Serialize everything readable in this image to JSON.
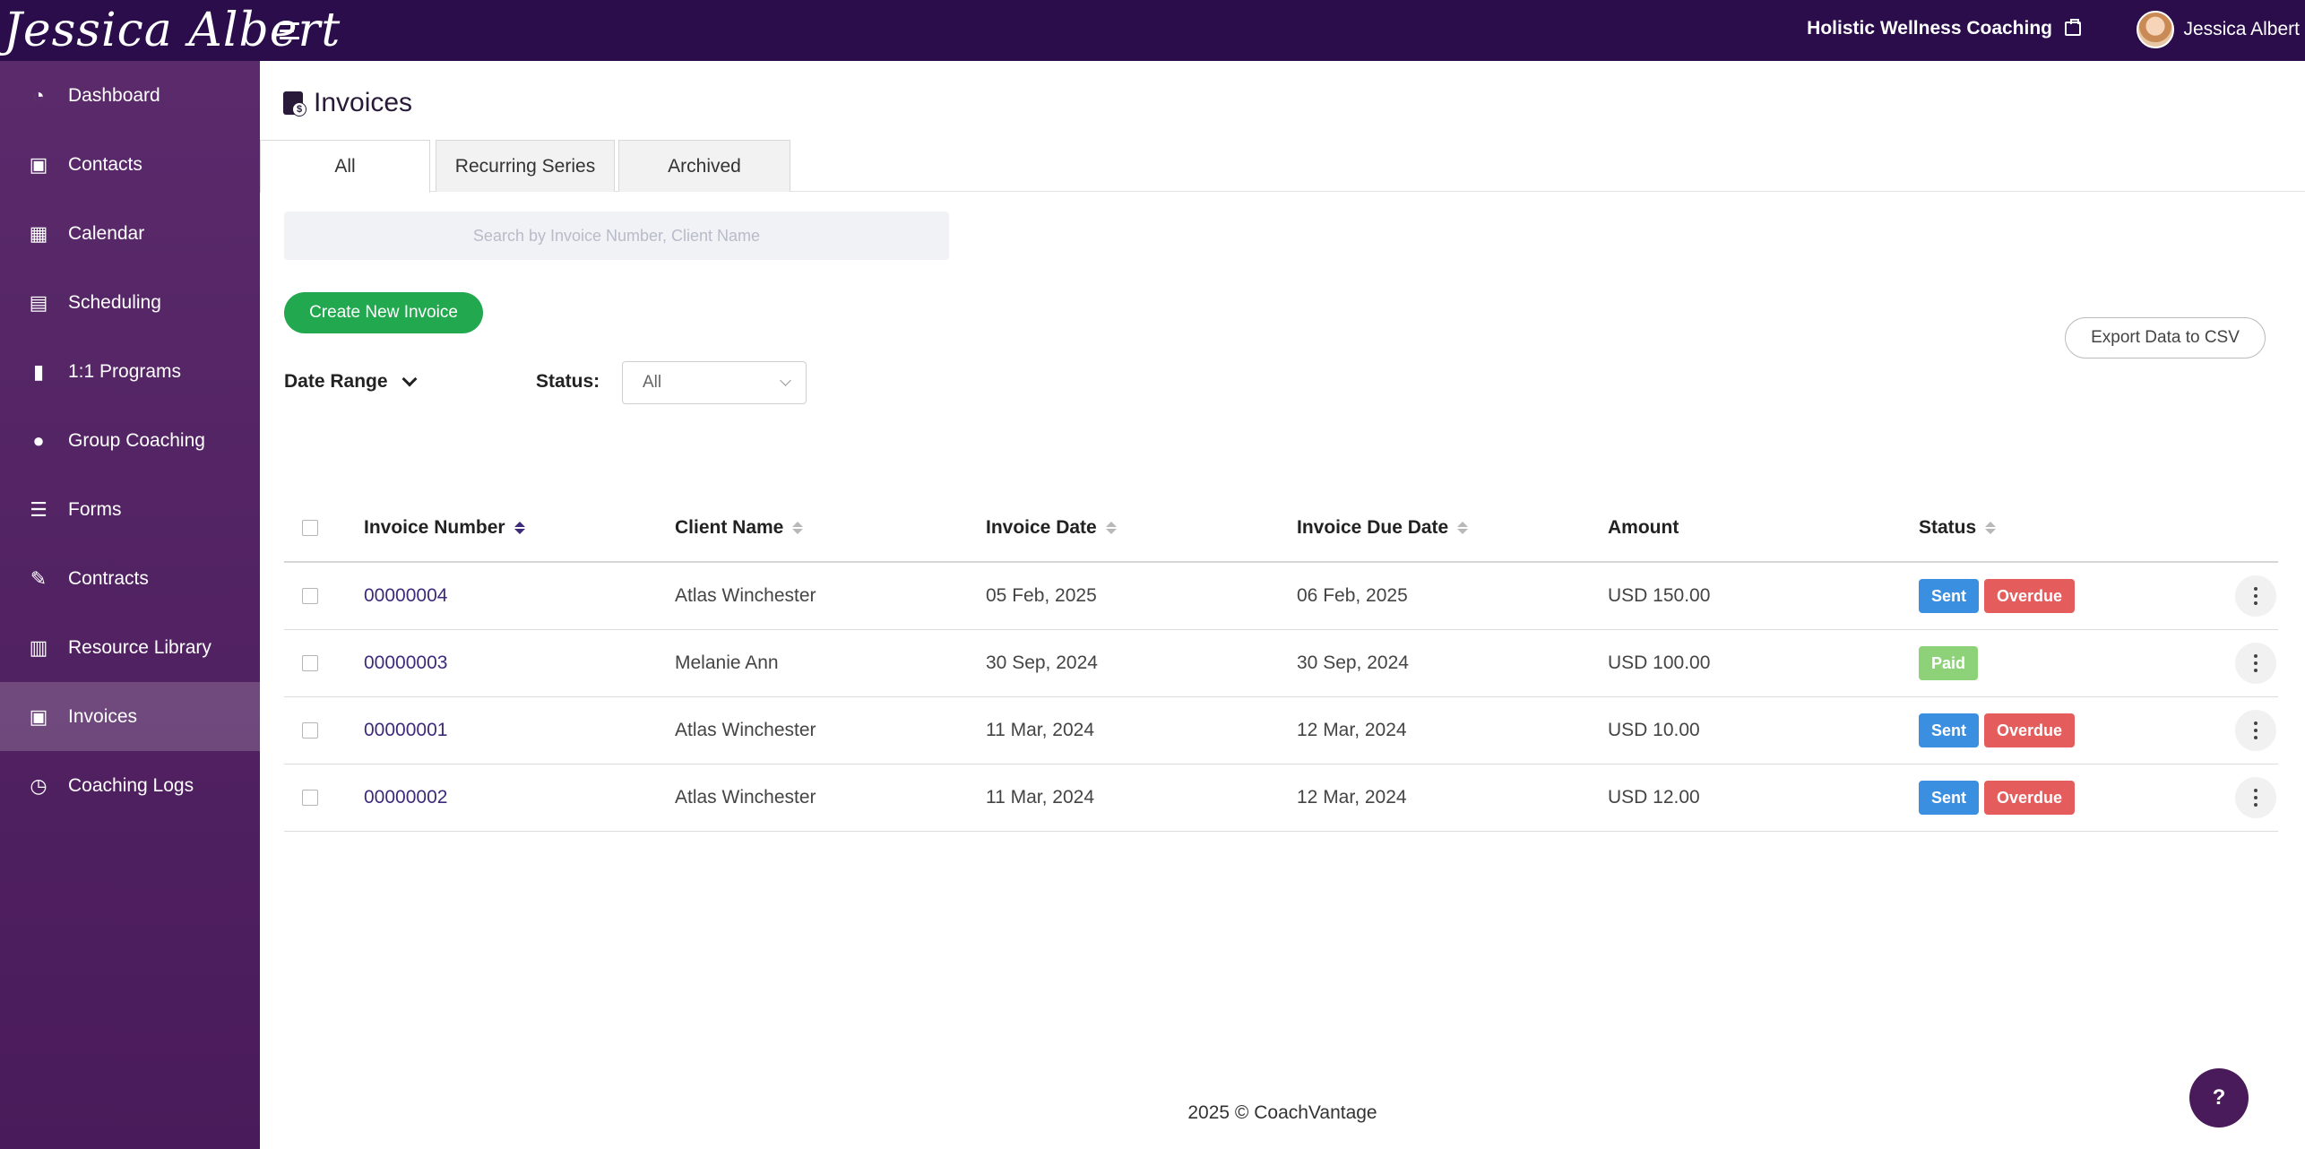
{
  "brand": {
    "name": "Jessica Albert"
  },
  "header": {
    "business_name": "Holistic Wellness Coaching",
    "user_name": "Jessica Albert"
  },
  "sidebar": {
    "items": [
      {
        "label": "Dashboard",
        "icon": "dashboard-icon"
      },
      {
        "label": "Contacts",
        "icon": "contacts-icon"
      },
      {
        "label": "Calendar",
        "icon": "calendar-icon"
      },
      {
        "label": "Scheduling",
        "icon": "scheduling-icon"
      },
      {
        "label": "1:1 Programs",
        "icon": "book-icon"
      },
      {
        "label": "Group Coaching",
        "icon": "group-icon"
      },
      {
        "label": "Forms",
        "icon": "forms-icon"
      },
      {
        "label": "Contracts",
        "icon": "contract-icon"
      },
      {
        "label": "Resource Library",
        "icon": "library-icon"
      },
      {
        "label": "Invoices",
        "icon": "invoice-icon",
        "active": true
      },
      {
        "label": "Coaching Logs",
        "icon": "clock-icon"
      }
    ]
  },
  "page": {
    "title": "Invoices"
  },
  "tabs": [
    {
      "label": "All",
      "active": true
    },
    {
      "label": "Recurring Series"
    },
    {
      "label": "Archived"
    }
  ],
  "search": {
    "placeholder": "Search by Invoice Number, Client Name"
  },
  "actions": {
    "create_label": "Create New Invoice",
    "export_label": "Export Data to CSV"
  },
  "filters": {
    "date_range_label": "Date Range",
    "status_label": "Status:",
    "status_value": "All"
  },
  "table": {
    "columns": [
      "Invoice Number",
      "Client Name",
      "Invoice Date",
      "Invoice Due Date",
      "Amount",
      "Status"
    ],
    "rows": [
      {
        "number": "00000004",
        "client": "Atlas Winchester",
        "date": "05 Feb, 2025",
        "due": "06 Feb, 2025",
        "amount": "USD 150.00",
        "badges": [
          "Sent",
          "Overdue"
        ]
      },
      {
        "number": "00000003",
        "client": "Melanie Ann",
        "date": "30 Sep, 2024",
        "due": "30 Sep, 2024",
        "amount": "USD 100.00",
        "badges": [
          "Paid"
        ]
      },
      {
        "number": "00000001",
        "client": "Atlas Winchester",
        "date": "11 Mar, 2024",
        "due": "12 Mar, 2024",
        "amount": "USD 10.00",
        "badges": [
          "Sent",
          "Overdue"
        ]
      },
      {
        "number": "00000002",
        "client": "Atlas Winchester",
        "date": "11 Mar, 2024",
        "due": "12 Mar, 2024",
        "amount": "USD 12.00",
        "badges": [
          "Sent",
          "Overdue"
        ]
      }
    ]
  },
  "footer": {
    "text": "2025 © CoachVantage"
  },
  "help": {
    "label": "?"
  },
  "colors": {
    "topbar": "#2a0d4a",
    "sidebar": "#4a1b5a",
    "primary_green": "#22a84f",
    "sent": "#3b8fe0",
    "overdue": "#e45c5c",
    "paid": "#8dd178",
    "link": "#3d2a7a"
  }
}
